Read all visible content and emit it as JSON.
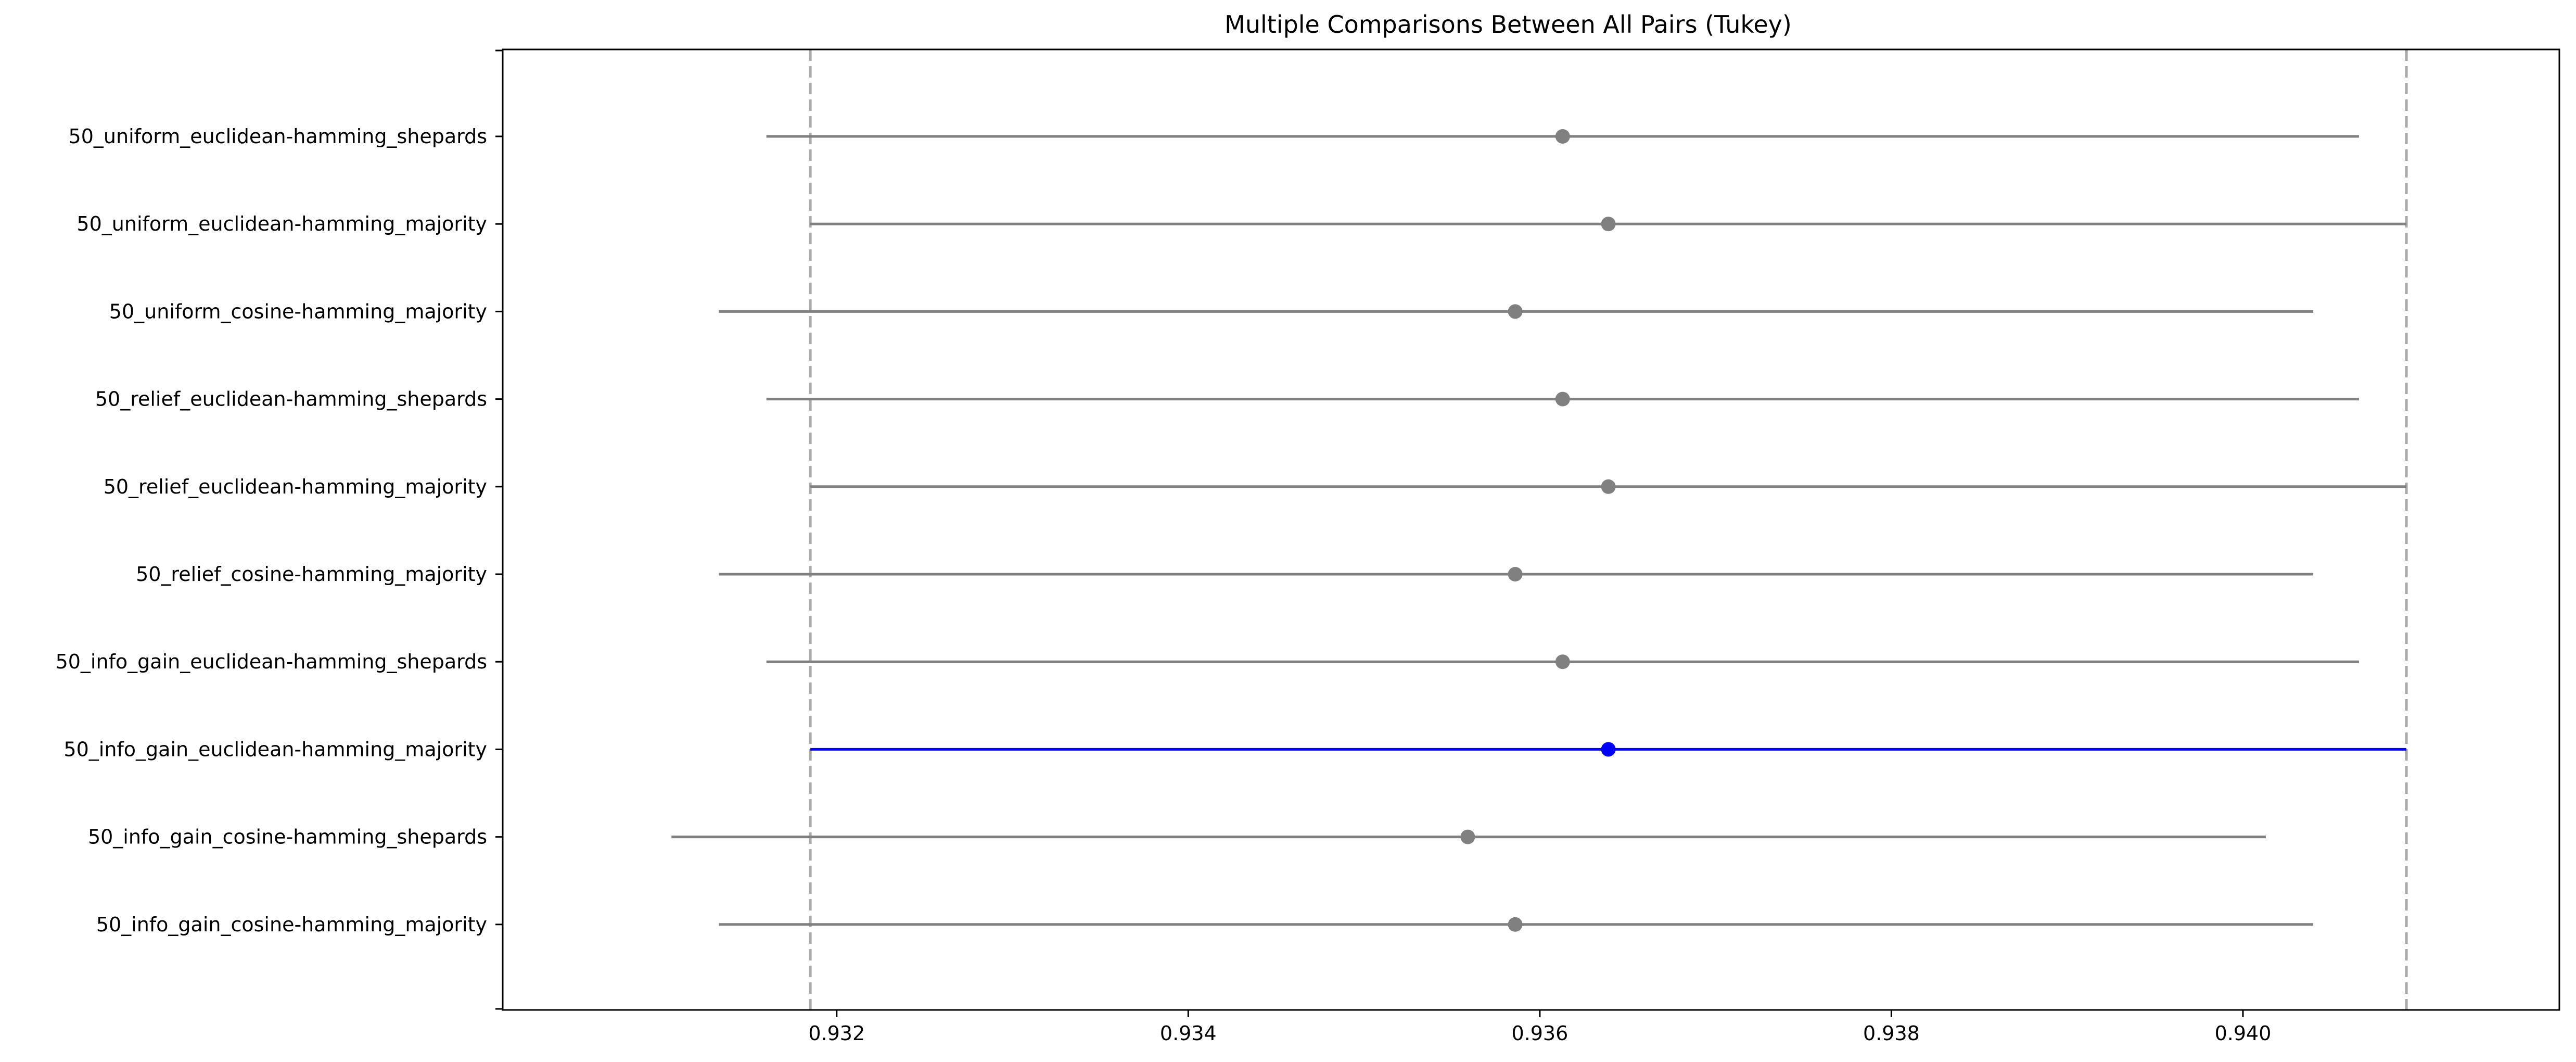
{
  "chart_data": {
    "type": "interval",
    "title": "Multiple Comparisons Between All Pairs (Tukey)",
    "xlabel": "",
    "ylabel": "",
    "xlim": [
      0.9301,
      0.9418
    ],
    "grid": false,
    "x_ticks": [
      0.932,
      0.934,
      0.936,
      0.938,
      0.94
    ],
    "x_tick_labels": [
      "0.932",
      "0.934",
      "0.936",
      "0.938",
      "0.940"
    ],
    "reference_lines": [
      0.93185,
      0.94093
    ],
    "groups": [
      {
        "label": "50_uniform_euclidean-hamming_shepards",
        "mean": 0.93613,
        "lower": 0.9316,
        "upper": 0.94066,
        "highlight": false
      },
      {
        "label": "50_uniform_euclidean-hamming_majority",
        "mean": 0.93639,
        "lower": 0.93185,
        "upper": 0.94093,
        "highlight": false
      },
      {
        "label": "50_uniform_cosine-hamming_majority",
        "mean": 0.93586,
        "lower": 0.93133,
        "upper": 0.9404,
        "highlight": false
      },
      {
        "label": "50_relief_euclidean-hamming_shepards",
        "mean": 0.93613,
        "lower": 0.9316,
        "upper": 0.94066,
        "highlight": false
      },
      {
        "label": "50_relief_euclidean-hamming_majority",
        "mean": 0.93639,
        "lower": 0.93185,
        "upper": 0.94093,
        "highlight": false
      },
      {
        "label": "50_relief_cosine-hamming_majority",
        "mean": 0.93586,
        "lower": 0.93133,
        "upper": 0.9404,
        "highlight": false
      },
      {
        "label": "50_info_gain_euclidean-hamming_shepards",
        "mean": 0.93613,
        "lower": 0.9316,
        "upper": 0.94066,
        "highlight": false
      },
      {
        "label": "50_info_gain_euclidean-hamming_majority",
        "mean": 0.93639,
        "lower": 0.93185,
        "upper": 0.94093,
        "highlight": true
      },
      {
        "label": "50_info_gain_cosine-hamming_shepards",
        "mean": 0.93559,
        "lower": 0.93106,
        "upper": 0.94013,
        "highlight": false
      },
      {
        "label": "50_info_gain_cosine-hamming_majority",
        "mean": 0.93586,
        "lower": 0.93133,
        "upper": 0.9404,
        "highlight": false
      }
    ],
    "colors": {
      "default": "#808080",
      "highlight": "#0000ff",
      "reference_line": "#aaaaaa",
      "axis": "#000000"
    }
  }
}
